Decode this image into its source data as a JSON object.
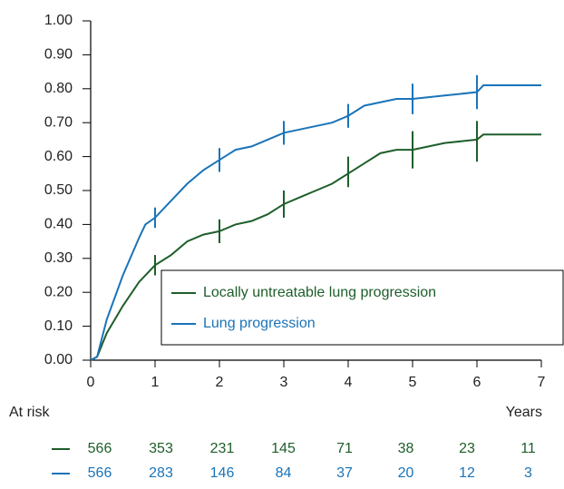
{
  "chart_data": {
    "type": "line",
    "xlim": [
      0,
      7
    ],
    "xticks": [
      0,
      1,
      2,
      3,
      4,
      5,
      6,
      7
    ],
    "ylim": [
      0,
      1
    ],
    "yticks": [
      {
        "value": 0,
        "label": "0.00"
      },
      {
        "value": 0.1,
        "label": "0.10"
      },
      {
        "value": 0.2,
        "label": "0.20"
      },
      {
        "value": 0.3,
        "label": "0.30"
      },
      {
        "value": 0.4,
        "label": "0.40"
      },
      {
        "value": 0.5,
        "label": "0.50"
      },
      {
        "value": 0.6,
        "label": "0.60"
      },
      {
        "value": 0.7,
        "label": "0.70"
      },
      {
        "value": 0.8,
        "label": "0.80"
      },
      {
        "value": 0.9,
        "label": "0.90"
      },
      {
        "value": 1,
        "label": "1.00"
      }
    ],
    "x_label": "Years",
    "series": [
      {
        "name": "Locally untreatable lung progression",
        "color": "#1e5e2a",
        "x": [
          0,
          0.1,
          0.25,
          0.5,
          0.75,
          1,
          1.25,
          1.5,
          1.75,
          2,
          2.25,
          2.5,
          2.75,
          3,
          3.25,
          3.5,
          3.75,
          4,
          4.25,
          4.5,
          4.75,
          5,
          5.5,
          6,
          6.1,
          7
        ],
        "values": [
          0,
          0.01,
          0.08,
          0.16,
          0.23,
          0.28,
          0.31,
          0.35,
          0.37,
          0.38,
          0.4,
          0.41,
          0.43,
          0.46,
          0.48,
          0.5,
          0.52,
          0.55,
          0.58,
          0.61,
          0.62,
          0.62,
          0.64,
          0.65,
          0.665,
          0.665
        ],
        "error_bars": {
          "x": [
            1,
            2,
            3,
            4,
            5,
            6
          ],
          "values": [
            0.28,
            0.38,
            0.46,
            0.555,
            0.62,
            0.645
          ],
          "errors": [
            0.03,
            0.035,
            0.04,
            0.045,
            0.055,
            0.06
          ]
        },
        "at_risk": [
          566,
          353,
          231,
          145,
          71,
          38,
          23,
          11
        ]
      },
      {
        "name": "Lung progression",
        "color": "#1a74b8",
        "x": [
          0,
          0.1,
          0.25,
          0.5,
          0.75,
          0.85,
          1,
          1.25,
          1.5,
          1.75,
          2,
          2.25,
          2.5,
          2.75,
          3,
          3.25,
          3.5,
          3.75,
          4,
          4.25,
          4.5,
          4.75,
          5,
          5.5,
          6,
          6.1,
          7
        ],
        "values": [
          0,
          0.01,
          0.12,
          0.25,
          0.36,
          0.4,
          0.42,
          0.47,
          0.52,
          0.56,
          0.59,
          0.62,
          0.63,
          0.65,
          0.67,
          0.68,
          0.69,
          0.7,
          0.72,
          0.75,
          0.76,
          0.77,
          0.77,
          0.78,
          0.79,
          0.81,
          0.81
        ],
        "error_bars": {
          "x": [
            1,
            2,
            3,
            4,
            5,
            6
          ],
          "values": [
            0.42,
            0.59,
            0.67,
            0.72,
            0.77,
            0.79
          ],
          "errors": [
            0.03,
            0.035,
            0.035,
            0.035,
            0.045,
            0.05
          ]
        },
        "at_risk": [
          566,
          283,
          146,
          84,
          37,
          20,
          12,
          3
        ]
      }
    ],
    "at_risk_label": "At risk"
  }
}
